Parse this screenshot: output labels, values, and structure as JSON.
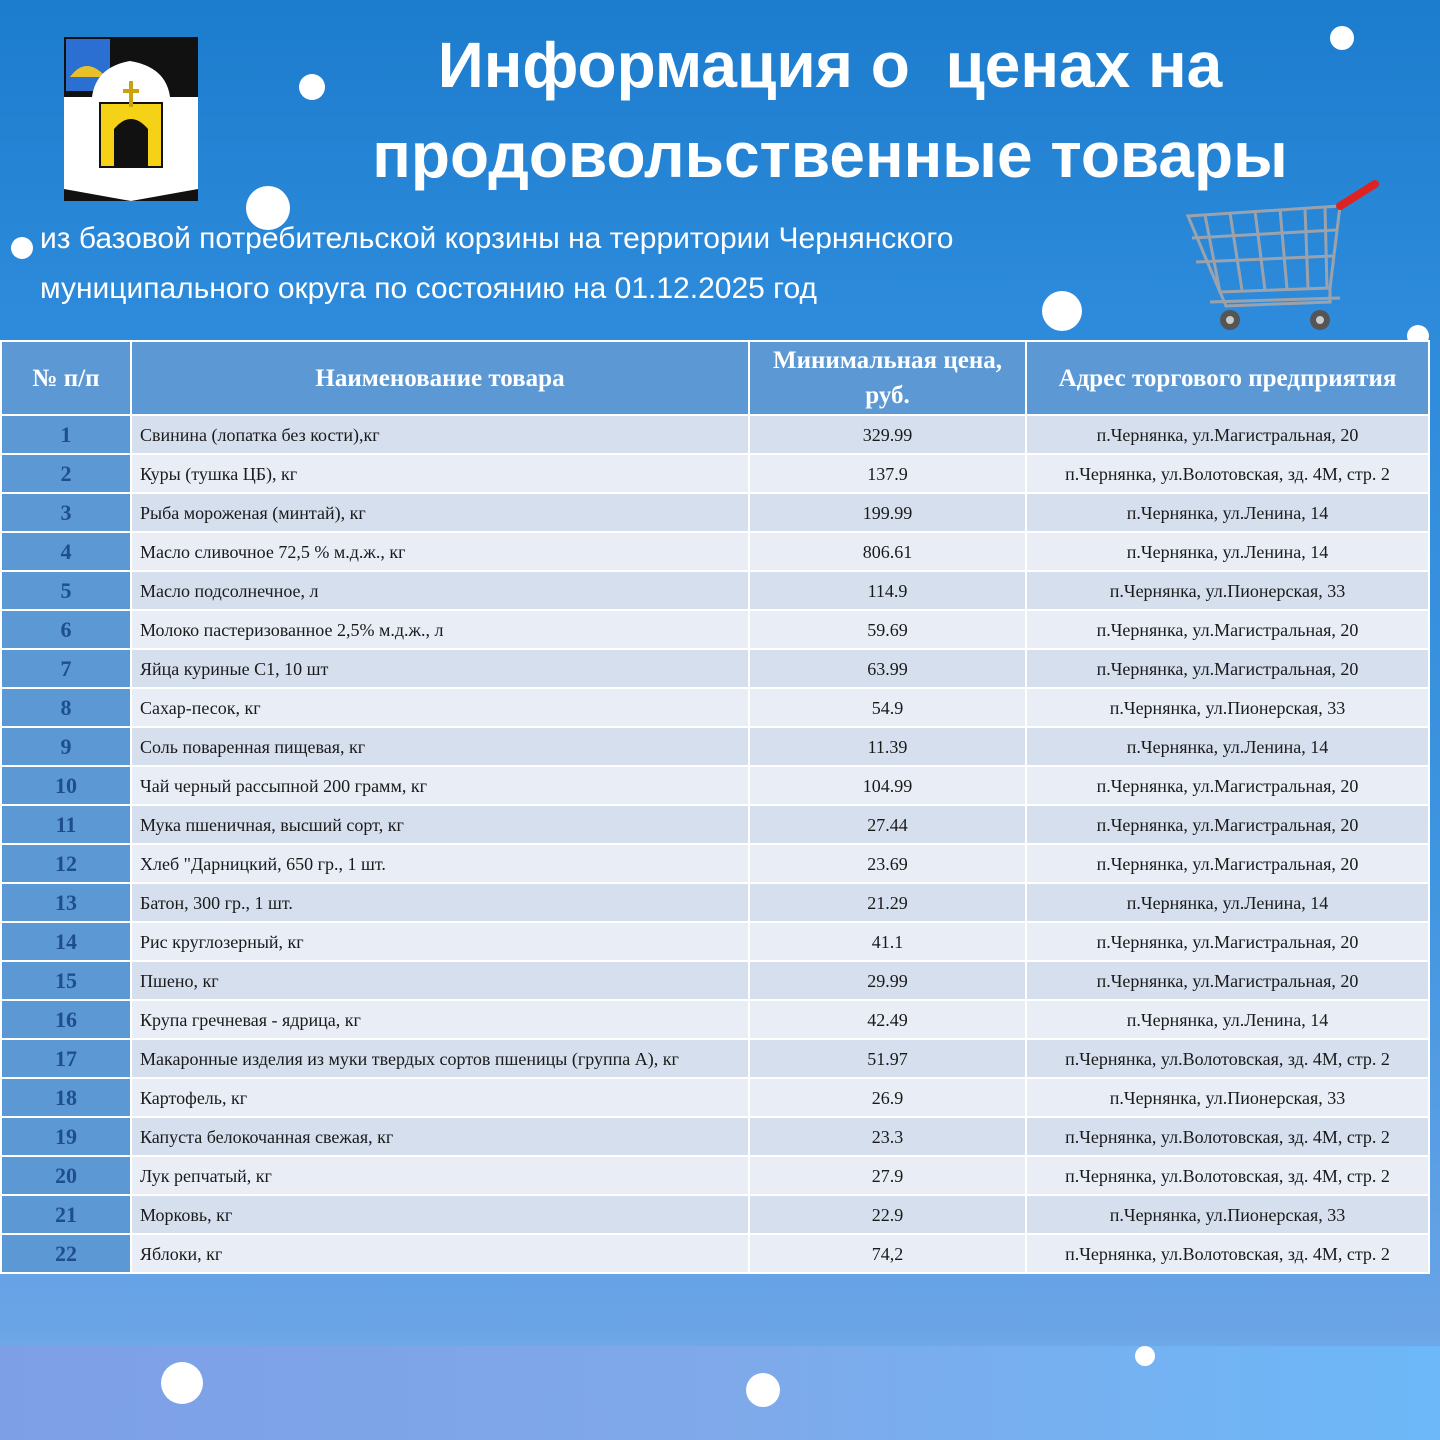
{
  "header": {
    "title": [
      "Информация о  ценах на",
      "продовольственные товары"
    ],
    "subtitle": [
      "из базовой потребительской корзины на территории Чернянского",
      "муниципального округа по состоянию на 01.12.2025 год"
    ]
  },
  "table": {
    "columns": [
      "№ п/п",
      "Наименование товара",
      "Минимальная цена, руб.",
      "Адрес торгового предприятия"
    ],
    "rows": [
      [
        "1",
        "Свинина (лопатка без кости),кг",
        "329.99",
        "п.Чернянка, ул.Магистральная, 20"
      ],
      [
        "2",
        "Куры (тушка ЦБ), кг",
        "137.9",
        "п.Чернянка, ул.Волотовская, зд. 4М, стр. 2"
      ],
      [
        "3",
        "Рыба мороженая (минтай), кг",
        "199.99",
        "п.Чернянка, ул.Ленина, 14"
      ],
      [
        "4",
        "Масло сливочное 72,5 % м.д.ж., кг",
        "806.61",
        "п.Чернянка, ул.Ленина, 14"
      ],
      [
        "5",
        "Масло подсолнечное, л",
        "114.9",
        "п.Чернянка, ул.Пионерская, 33"
      ],
      [
        "6",
        "Молоко пастеризованное 2,5% м.д.ж., л",
        "59.69",
        "п.Чернянка, ул.Магистральная, 20"
      ],
      [
        "7",
        "Яйца куриные С1, 10 шт",
        "63.99",
        "п.Чернянка, ул.Магистральная, 20"
      ],
      [
        "8",
        "Сахар-песок, кг",
        "54.9",
        "п.Чернянка, ул.Пионерская, 33"
      ],
      [
        "9",
        "Соль поваренная пищевая, кг",
        "11.39",
        "п.Чернянка, ул.Ленина, 14"
      ],
      [
        "10",
        "Чай черный рассыпной 200 грамм, кг",
        "104.99",
        "п.Чернянка, ул.Магистральная, 20"
      ],
      [
        "11",
        "Мука пшеничная, высший сорт, кг",
        "27.44",
        "п.Чернянка, ул.Магистральная, 20"
      ],
      [
        "12",
        "Хлеб \"Дарницкий, 650 гр., 1 шт.",
        "23.69",
        "п.Чернянка, ул.Магистральная, 20"
      ],
      [
        "13",
        "Батон, 300 гр., 1 шт.",
        "21.29",
        "п.Чернянка, ул.Ленина, 14"
      ],
      [
        "14",
        "Рис круглозерный, кг",
        "41.1",
        "п.Чернянка, ул.Магистральная, 20"
      ],
      [
        "15",
        "Пшено, кг",
        "29.99",
        "п.Чернянка, ул.Магистральная, 20"
      ],
      [
        "16",
        "Крупа гречневая - ядрица, кг",
        "42.49",
        "п.Чернянка, ул.Ленина, 14"
      ],
      [
        "17",
        "Макаронные изделия из муки твердых сортов пшеницы (группа А), кг",
        "51.97",
        "п.Чернянка, ул.Волотовская, зд. 4М, стр. 2"
      ],
      [
        "18",
        "Картофель, кг",
        "26.9",
        "п.Чернянка, ул.Пионерская, 33"
      ],
      [
        "19",
        "Капуста белокочанная свежая, кг",
        "23.3",
        "п.Чернянка, ул.Волотовская, зд. 4М, стр. 2"
      ],
      [
        "20",
        "Лук репчатый, кг",
        "27.9",
        "п.Чернянка, ул.Волотовская, зд. 4М, стр. 2"
      ],
      [
        "21",
        "Морковь, кг",
        "22.9",
        "п.Чернянка, ул.Пионерская, 33"
      ],
      [
        "22",
        "Яблоки, кг",
        "74,2",
        "п.Чернянка, ул.Волотовская, зд. 4М, стр. 2"
      ]
    ]
  }
}
